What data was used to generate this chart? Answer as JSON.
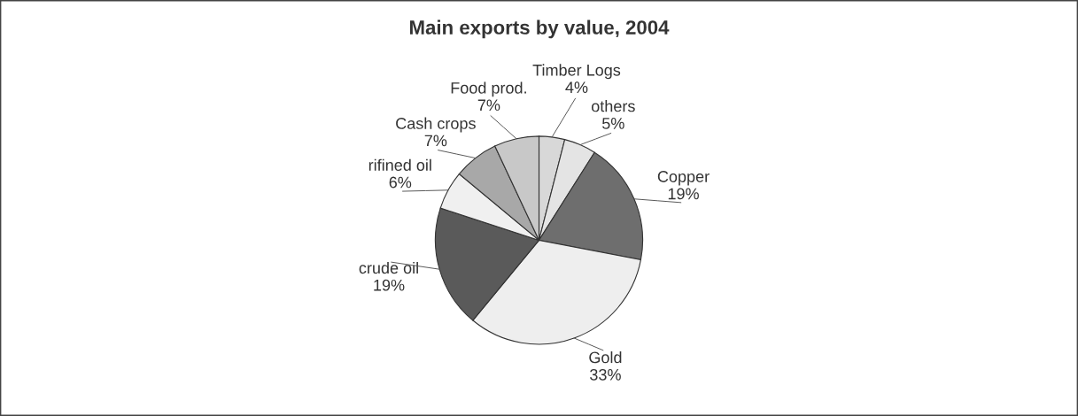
{
  "chart_data": {
    "type": "pie",
    "title": "Main exports by value, 2004",
    "categories": [
      "Timber Logs",
      "others",
      "Copper",
      "Gold",
      "crude oil",
      "rifined oil",
      "Cash crops",
      "Food prod."
    ],
    "values": [
      4,
      5,
      19,
      33,
      19,
      6,
      7,
      7
    ],
    "value_labels": [
      "4%",
      "5%",
      "19%",
      "33%",
      "19%",
      "6%",
      "7%",
      "7%"
    ],
    "colors": [
      "#d8d8d8",
      "#e4e4e4",
      "#6e6e6e",
      "#eeeeee",
      "#5a5a5a",
      "#f0f0f0",
      "#a8a8a8",
      "#c8c8c8"
    ]
  }
}
